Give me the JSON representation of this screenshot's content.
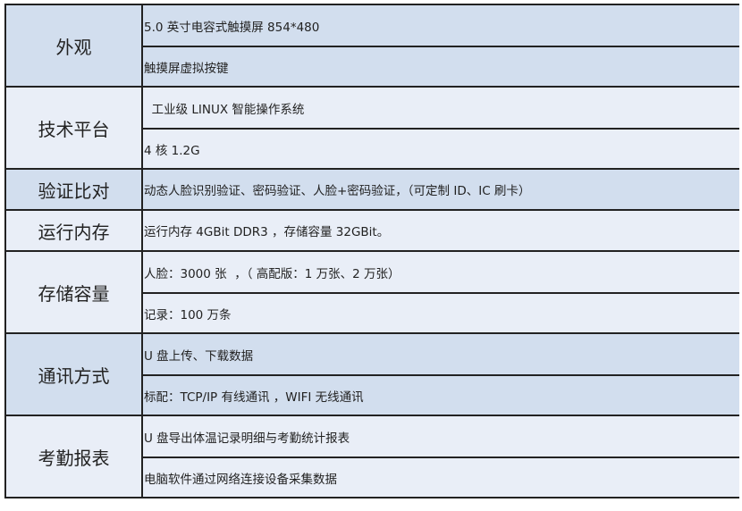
{
  "colors": {
    "dark_row": "#d2deee",
    "light_row": "#e9eef7",
    "border": "#222222"
  },
  "rows": [
    {
      "label": "外观",
      "values": [
        "5.0 英寸电容式触摸屏 854*480",
        "触摸屏虚拟按键"
      ]
    },
    {
      "label": "技术平台",
      "values": [
        "  工业级 LINUX 智能操作系统",
        "4 核 1.2G"
      ]
    },
    {
      "label": "验证比对",
      "values": [
        "动态人脸识别验证、密码验证、人脸+密码验证，（可定制 ID、IC 刷卡）"
      ]
    },
    {
      "label": "运行内存",
      "values": [
        "运行内存 4GBit DDR3 ，存储容量 32GBit。"
      ]
    },
    {
      "label": "存储容量",
      "values": [
        "人脸：3000 张  ，（ 高配版：1 万张、2 万张）",
        "记录：100 万条"
      ]
    },
    {
      "label": "通讯方式",
      "values": [
        "U 盘上传、下载数据",
        "标配：TCP/IP 有线通讯 ，WIFI 无线通讯"
      ]
    },
    {
      "label": "考勤报表",
      "values": [
        "U 盘导出体温记录明细与考勤统计报表",
        "电脑软件通过网络连接设备采集数据"
      ]
    }
  ]
}
